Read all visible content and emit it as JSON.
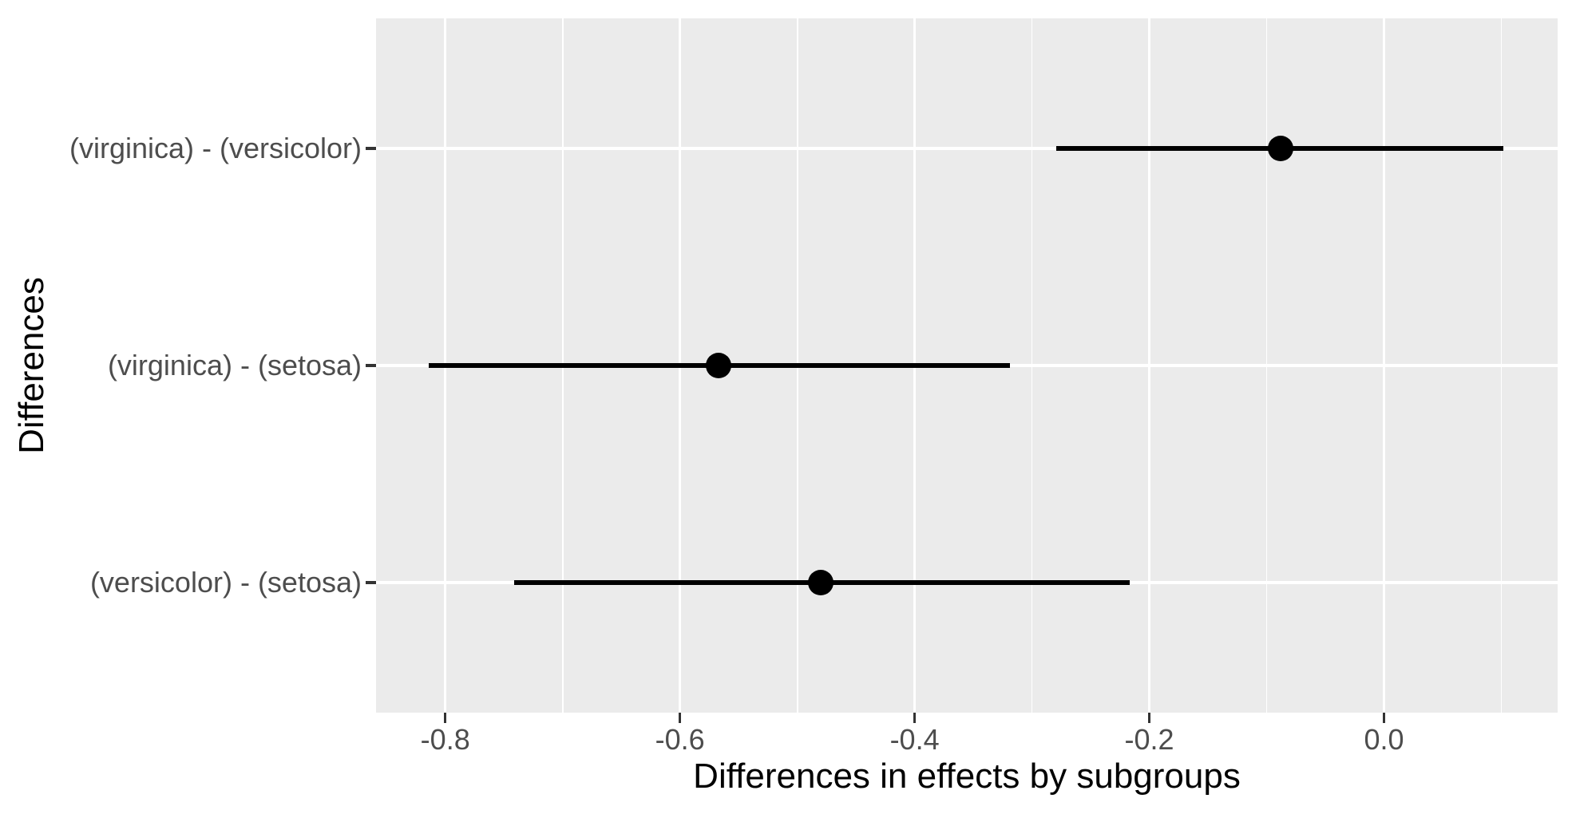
{
  "chart_data": {
    "type": "pointrange",
    "orientation": "horizontal",
    "title": "",
    "xlabel": "Differences in effects by subgroups",
    "ylabel": "Differences",
    "xlim": [
      -0.859,
      0.148
    ],
    "ylim": [
      0.4,
      3.6
    ],
    "x_major_ticks": [
      -0.8,
      -0.6,
      -0.4,
      -0.2,
      0.0
    ],
    "x_tick_labels": [
      "-0.8",
      "-0.6",
      "-0.4",
      "-0.2",
      "0.0"
    ],
    "x_minor_ticks": [
      -0.9,
      -0.7,
      -0.5,
      -0.3,
      -0.1,
      0.1
    ],
    "grid": true,
    "legend": "none",
    "rows": [
      {
        "label": "(virginica) - (versicolor)",
        "y": 3,
        "estimate": -0.088,
        "ci_low": -0.279,
        "ci_high": 0.102
      },
      {
        "label": "(virginica) - (setosa)",
        "y": 2,
        "estimate": -0.567,
        "ci_low": -0.814,
        "ci_high": -0.319
      },
      {
        "label": "(versicolor) - (setosa)",
        "y": 1,
        "estimate": -0.48,
        "ci_low": -0.741,
        "ci_high": -0.217
      }
    ],
    "theme": {
      "panel_bg": "#EBEBEB",
      "grid_color": "#FFFFFF",
      "point_color": "#000000",
      "range_color": "#000000",
      "tick_label_color": "#4D4D4D",
      "axis_title_color": "#000000",
      "tick_mark_color": "#333333",
      "background": "#FFFFFF"
    }
  }
}
